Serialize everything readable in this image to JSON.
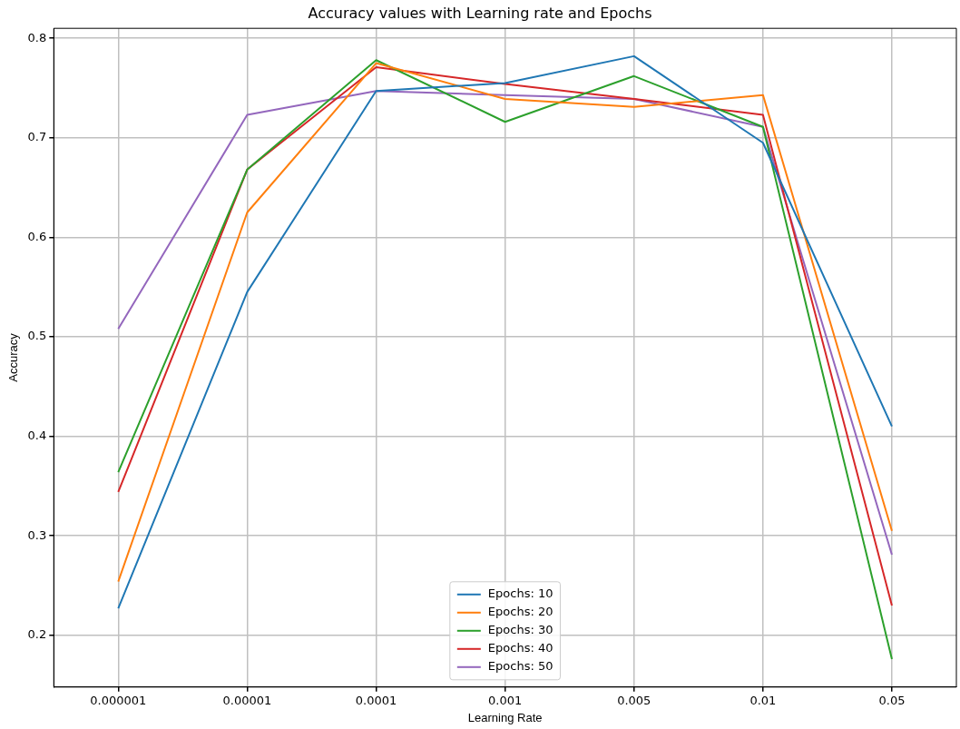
{
  "chart_data": {
    "type": "line",
    "title": "Accuracy values with Learning rate and Epochs",
    "xlabel": "Learning Rate",
    "ylabel": "Accuracy",
    "categories": [
      "0.000001",
      "0.00001",
      "0.0001",
      "0.001",
      "0.005",
      "0.01",
      "0.05"
    ],
    "series": [
      {
        "name": "Epochs: 10",
        "color": "#1f77b4",
        "values": [
          0.227,
          0.545,
          0.747,
          0.755,
          0.782,
          0.695,
          0.41
        ]
      },
      {
        "name": "Epochs: 20",
        "color": "#ff7f0e",
        "values": [
          0.254,
          0.625,
          0.775,
          0.739,
          0.731,
          0.743,
          0.305
        ]
      },
      {
        "name": "Epochs: 30",
        "color": "#2ca02c",
        "values": [
          0.364,
          0.668,
          0.778,
          0.716,
          0.762,
          0.711,
          0.176
        ]
      },
      {
        "name": "Epochs: 40",
        "color": "#d62728",
        "values": [
          0.344,
          0.668,
          0.771,
          0.754,
          0.739,
          0.723,
          0.23
        ]
      },
      {
        "name": "Epochs: 50",
        "color": "#9467bd",
        "values": [
          0.508,
          0.723,
          0.747,
          0.743,
          0.739,
          0.711,
          0.281
        ]
      }
    ],
    "ylim": [
      0.148,
      0.81
    ],
    "yticks": [
      0.2,
      0.3,
      0.4,
      0.5,
      0.6,
      0.7,
      0.8
    ],
    "grid": true,
    "legend": "bottom",
    "marker": "none",
    "line_style": "solid"
  }
}
